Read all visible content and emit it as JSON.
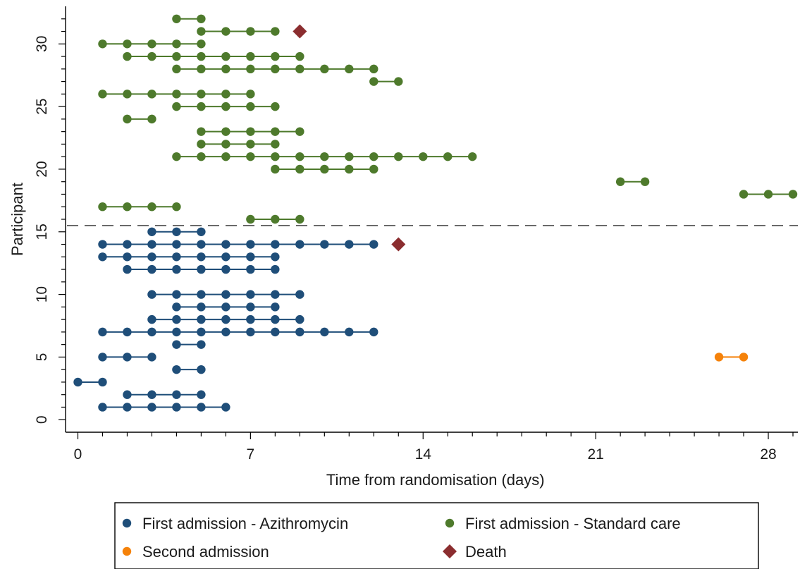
{
  "chart_data": {
    "type": "scatter",
    "title": "",
    "xlabel": "Time from randomisation (days)",
    "ylabel": "Participant",
    "xlim": [
      -0.5,
      29.2
    ],
    "ylim": [
      -1,
      33
    ],
    "x_ticks": [
      0,
      7,
      14,
      21,
      28
    ],
    "y_ticks": [
      0,
      5,
      10,
      15,
      20,
      25,
      30
    ],
    "grid": false,
    "separator_line": {
      "y": 15.5,
      "style": "dashed"
    },
    "legend_position": "bottom",
    "colors": {
      "azithromycin": "#1f4e79",
      "standard_care": "#4e7a2c",
      "second_admission": "#f5820a",
      "death": "#8b2d2f"
    },
    "series": [
      {
        "name": "First admission - Azithromycin",
        "color": "#1f4e79",
        "marker": "circle",
        "segments": [
          {
            "participant": 1,
            "days": [
              1,
              2,
              3,
              4,
              5,
              6
            ]
          },
          {
            "participant": 2,
            "days": [
              2,
              3,
              4,
              5
            ]
          },
          {
            "participant": 3,
            "days": [
              0,
              1
            ]
          },
          {
            "participant": 4,
            "days": [
              4,
              5
            ]
          },
          {
            "participant": 5,
            "days": [
              1,
              2,
              3
            ]
          },
          {
            "participant": 6,
            "days": [
              4,
              5
            ]
          },
          {
            "participant": 7,
            "days": [
              1,
              2,
              3,
              4,
              5,
              6,
              7,
              8,
              9,
              10,
              11,
              12
            ]
          },
          {
            "participant": 8,
            "days": [
              3,
              4,
              5,
              6,
              7,
              8,
              9
            ]
          },
          {
            "participant": 9,
            "days": [
              4,
              5,
              6,
              7,
              8
            ]
          },
          {
            "participant": 10,
            "days": [
              3,
              4,
              5,
              6,
              7,
              8,
              9
            ]
          },
          {
            "participant": 12,
            "days": [
              2,
              3,
              4,
              5,
              6,
              7,
              8
            ]
          },
          {
            "participant": 13,
            "days": [
              1,
              2,
              3,
              4,
              5,
              6,
              7,
              8
            ]
          },
          {
            "participant": 14,
            "days": [
              1,
              2,
              3,
              4,
              5,
              6,
              7,
              8,
              9,
              10,
              11,
              12
            ]
          },
          {
            "participant": 15,
            "days": [
              3,
              4,
              5
            ]
          }
        ]
      },
      {
        "name": "First admission - Standard care",
        "color": "#4e7a2c",
        "marker": "circle",
        "segments": [
          {
            "participant": 16,
            "days": [
              7,
              8,
              9
            ]
          },
          {
            "participant": 17,
            "days": [
              1,
              2,
              3,
              4
            ]
          },
          {
            "participant": 18,
            "days": [
              27,
              28,
              29
            ]
          },
          {
            "participant": 19,
            "days": [
              22,
              23
            ]
          },
          {
            "participant": 20,
            "days": [
              8,
              9,
              10,
              11,
              12
            ]
          },
          {
            "participant": 21,
            "days": [
              4,
              5,
              6,
              7,
              8,
              9,
              10,
              11,
              12,
              13,
              14,
              15,
              16
            ]
          },
          {
            "participant": 22,
            "days": [
              5,
              6,
              7,
              8
            ]
          },
          {
            "participant": 23,
            "days": [
              5,
              6,
              7,
              8,
              9
            ]
          },
          {
            "participant": 24,
            "days": [
              2,
              3
            ]
          },
          {
            "participant": 25,
            "days": [
              4,
              5,
              6,
              7,
              8
            ]
          },
          {
            "participant": 26,
            "days": [
              1,
              2,
              3,
              4,
              5,
              6,
              7
            ]
          },
          {
            "participant": 27,
            "days": [
              12,
              13
            ]
          },
          {
            "participant": 28,
            "days": [
              4,
              5,
              6,
              7,
              8,
              9,
              10,
              11,
              12
            ]
          },
          {
            "participant": 29,
            "days": [
              2,
              3,
              4,
              5,
              6,
              7,
              8,
              9
            ]
          },
          {
            "participant": 30,
            "days": [
              1,
              2,
              3,
              4,
              5
            ]
          },
          {
            "participant": 31,
            "days": [
              5,
              6,
              7,
              8
            ]
          },
          {
            "participant": 32,
            "days": [
              4,
              5
            ]
          }
        ]
      },
      {
        "name": "Second admission",
        "color": "#f5820a",
        "marker": "circle",
        "segments": [
          {
            "participant": 5,
            "days": [
              26,
              27
            ]
          }
        ]
      },
      {
        "name": "Death",
        "color": "#8b2d2f",
        "marker": "diamond",
        "points": [
          {
            "participant": 14,
            "day": 13
          },
          {
            "participant": 31,
            "day": 9
          }
        ]
      }
    ]
  }
}
